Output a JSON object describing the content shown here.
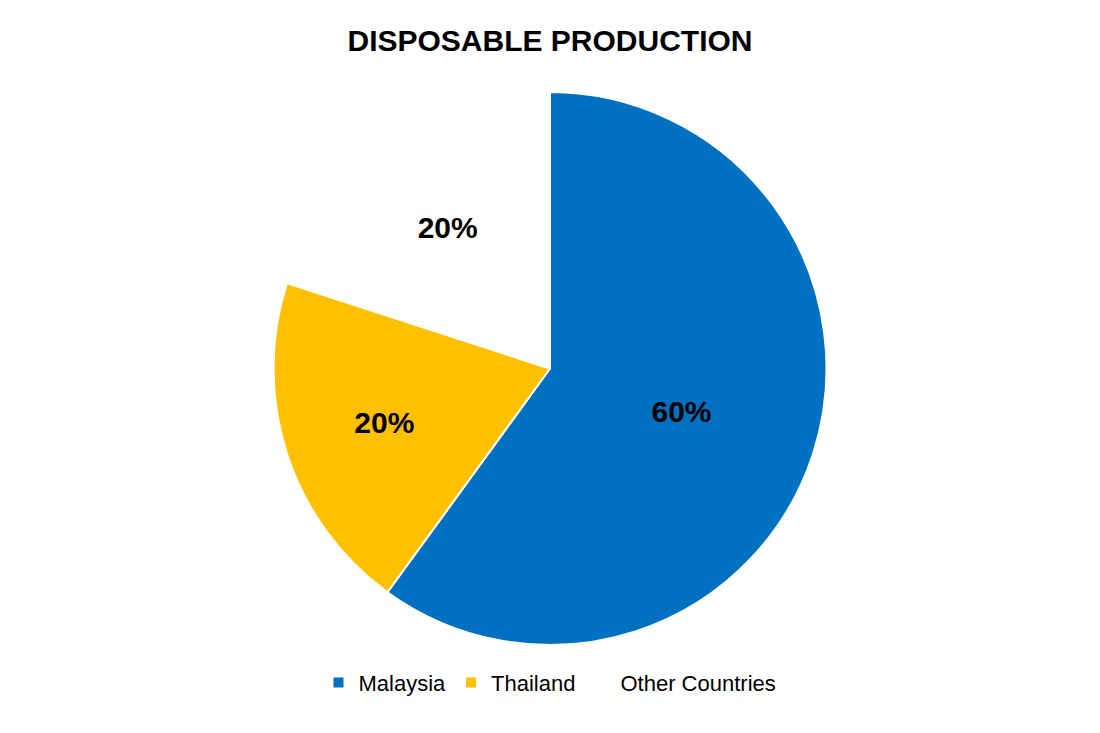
{
  "chart_data": {
    "type": "pie",
    "title": "DISPOSABLE PRODUCTION",
    "categories": [
      "Malaysia",
      "Thailand",
      "Other Countries"
    ],
    "values": [
      60,
      20,
      20
    ],
    "value_labels": [
      "60%",
      "20%",
      "20%"
    ],
    "colors": [
      "#0070C0",
      "#FFC000",
      "#FFFFFF"
    ],
    "data_labels": true,
    "legend": "bottom"
  }
}
